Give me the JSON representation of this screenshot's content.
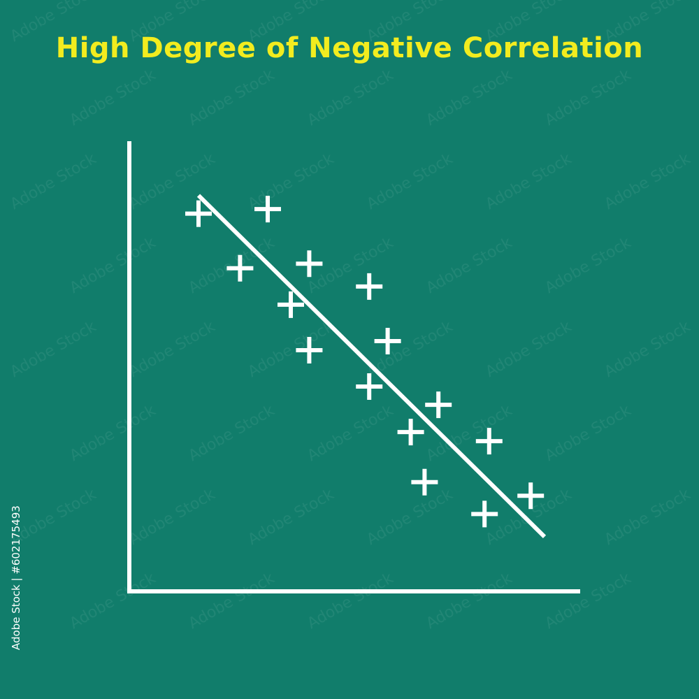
{
  "title": "High Degree of Negative Correlation",
  "stock_id": "Adobe Stock | #602175493",
  "watermark": "Adobe Stock",
  "colors": {
    "background": "#117d6b",
    "title": "#f2ec1f",
    "chart_ink": "#ffffff",
    "stock_id": "#ffffff",
    "watermark": "rgba(255,255,255,0.07)"
  },
  "chart_data": {
    "type": "scatter",
    "title": "High Degree of Negative Correlation",
    "xlabel": "",
    "ylabel": "",
    "grid": false,
    "marker": "plus",
    "xlim": [
      0,
      100
    ],
    "ylim": [
      0,
      100
    ],
    "points": [
      {
        "x": 15,
        "y": 83
      },
      {
        "x": 30,
        "y": 84
      },
      {
        "x": 24,
        "y": 71
      },
      {
        "x": 39,
        "y": 72
      },
      {
        "x": 35,
        "y": 63
      },
      {
        "x": 39,
        "y": 53
      },
      {
        "x": 52,
        "y": 67
      },
      {
        "x": 56,
        "y": 55
      },
      {
        "x": 52,
        "y": 45
      },
      {
        "x": 67,
        "y": 41
      },
      {
        "x": 61,
        "y": 35
      },
      {
        "x": 78,
        "y": 33
      },
      {
        "x": 64,
        "y": 24
      },
      {
        "x": 77,
        "y": 17
      },
      {
        "x": 87,
        "y": 21
      }
    ],
    "trend_line": {
      "x1": 15,
      "y1": 87,
      "x2": 90,
      "y2": 12
    }
  }
}
